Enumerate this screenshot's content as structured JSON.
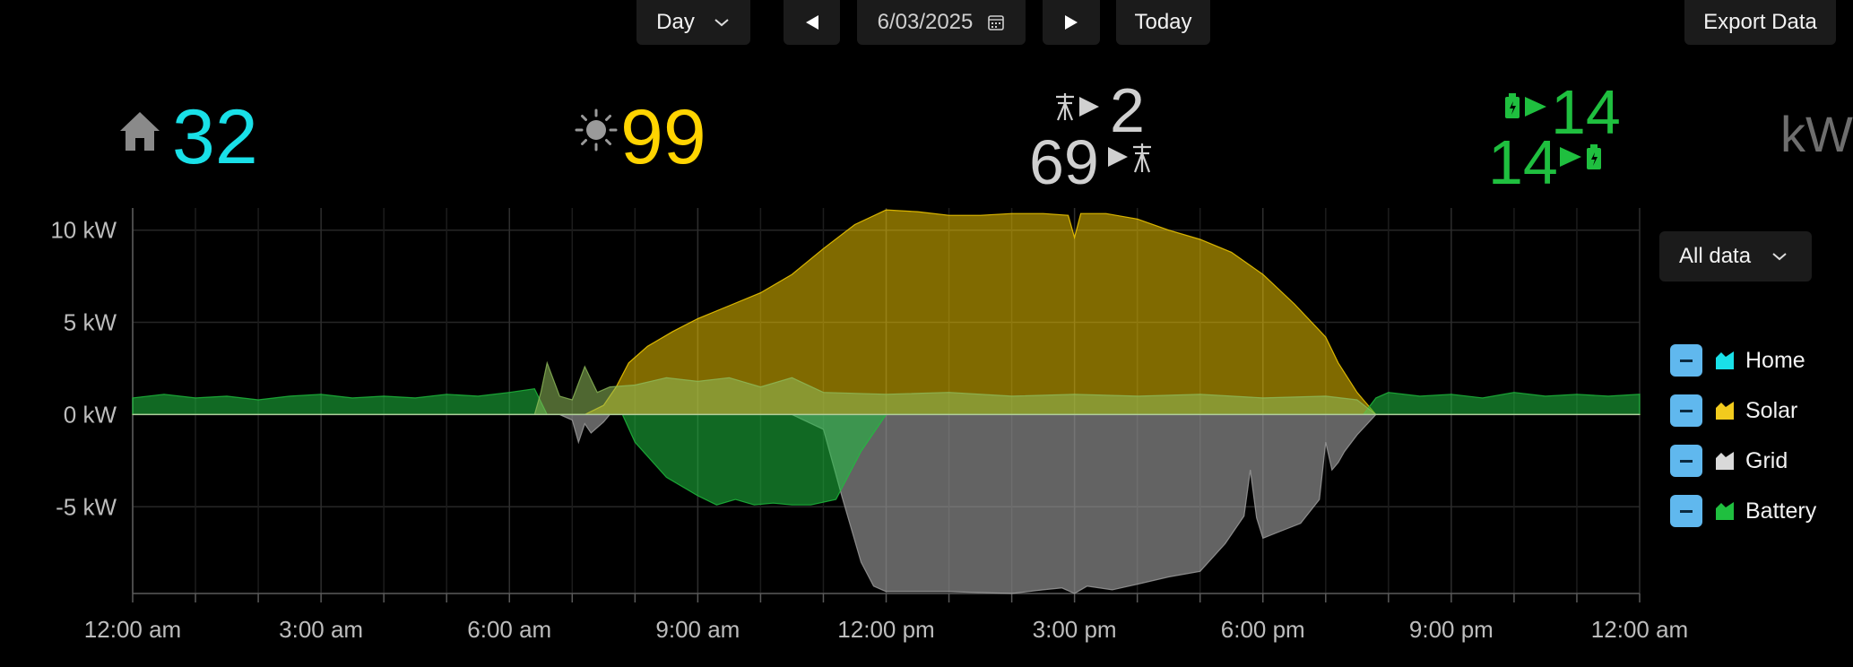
{
  "toolbar": {
    "period": "Day",
    "date": "6/03/2025",
    "today_label": "Today",
    "export_label": "Export Data"
  },
  "summary": {
    "home": "32",
    "solar": "99",
    "grid_import": "2",
    "grid_export": "69",
    "battery_charge": "14",
    "battery_discharge": "14",
    "unit_partial": "kW"
  },
  "filter": {
    "label": "All data"
  },
  "legend": [
    {
      "label": "Home",
      "color": "#19e0e8"
    },
    {
      "label": "Solar",
      "color": "#f2cb1d"
    },
    {
      "label": "Grid",
      "color": "#d9d9d9"
    },
    {
      "label": "Battery",
      "color": "#1fbf3f"
    }
  ],
  "chart_data": {
    "type": "area",
    "y_unit": "kW",
    "ylim": [
      -9.7,
      11.2
    ],
    "y_ticks": [
      10,
      5,
      0,
      -5
    ],
    "y_tick_labels": [
      "10 kW",
      "5 kW",
      "0 kW",
      "-5 kW"
    ],
    "x_ticks": [
      0,
      3,
      6,
      9,
      12,
      15,
      18,
      21,
      24
    ],
    "x_tick_labels": [
      "12:00 am",
      "3:00 am",
      "6:00 am",
      "9:00 am",
      "12:00 pm",
      "3:00 pm",
      "6:00 pm",
      "9:00 pm",
      "12:00 am"
    ],
    "grid": true,
    "series": [
      {
        "name": "Solar",
        "color": "#ffd400",
        "x": [
          0,
          7.2,
          7.5,
          7.7,
          7.9,
          8.2,
          8.6,
          9.0,
          9.5,
          10.0,
          10.5,
          11.0,
          11.5,
          12.0,
          12.5,
          13.0,
          13.5,
          14.0,
          14.5,
          14.9,
          15.0,
          15.1,
          15.5,
          16.0,
          16.5,
          17.0,
          17.5,
          18.0,
          18.5,
          19.0,
          19.2,
          19.5,
          19.8,
          24
        ],
        "y": [
          0,
          0,
          0.5,
          1.5,
          2.8,
          3.7,
          4.5,
          5.2,
          5.9,
          6.6,
          7.6,
          9.0,
          10.3,
          11.1,
          11.0,
          10.8,
          10.8,
          10.9,
          10.9,
          10.8,
          9.6,
          10.9,
          10.9,
          10.6,
          10.0,
          9.5,
          8.8,
          7.6,
          6.0,
          4.2,
          2.8,
          1.2,
          0,
          0
        ]
      },
      {
        "name": "Grid",
        "color": "#a0a0a0",
        "x": [
          0,
          6.8,
          7.0,
          7.1,
          7.2,
          7.3,
          7.5,
          7.6,
          7.8,
          10.5,
          11.0,
          11.3,
          11.6,
          11.8,
          12.0,
          13.0,
          14.0,
          14.5,
          14.8,
          15.0,
          15.2,
          15.6,
          16.0,
          16.5,
          17.0,
          17.4,
          17.7,
          17.8,
          17.9,
          18.0,
          18.3,
          18.6,
          18.9,
          19.0,
          19.1,
          19.2,
          19.3,
          19.5,
          19.8,
          24
        ],
        "y": [
          0,
          0,
          -0.3,
          -1.5,
          -0.5,
          -1.0,
          -0.4,
          0,
          0,
          0,
          -0.8,
          -4.5,
          -8.0,
          -9.3,
          -9.6,
          -9.6,
          -9.7,
          -9.5,
          -9.4,
          -9.7,
          -9.3,
          -9.5,
          -9.2,
          -8.8,
          -8.5,
          -7.0,
          -5.5,
          -3.0,
          -5.6,
          -6.7,
          -6.3,
          -5.9,
          -4.6,
          -1.5,
          -3.0,
          -2.6,
          -2.0,
          -1.1,
          0,
          0
        ]
      },
      {
        "name": "Battery",
        "color": "#1fbf3f",
        "x": [
          0,
          0.5,
          1.0,
          1.5,
          2.0,
          2.5,
          3.0,
          3.5,
          4.0,
          4.5,
          5.0,
          5.5,
          6.0,
          6.4,
          6.6,
          7.0,
          7.3,
          7.6,
          7.8,
          8.0,
          8.5,
          9.0,
          9.3,
          9.6,
          9.9,
          10.2,
          10.5,
          10.8,
          11.2,
          11.6,
          12.0,
          19.6,
          19.8,
          20.0,
          20.5,
          21.0,
          21.5,
          22.0,
          22.5,
          23.0,
          23.5,
          24
        ],
        "y": [
          0.9,
          1.1,
          0.9,
          1.0,
          0.8,
          1.0,
          1.1,
          0.9,
          1.0,
          0.9,
          1.1,
          1.0,
          1.2,
          1.4,
          0,
          0,
          0,
          0,
          0,
          -1.5,
          -3.4,
          -4.4,
          -4.9,
          -4.6,
          -4.9,
          -4.8,
          -4.9,
          -4.9,
          -4.6,
          -2.0,
          0,
          0,
          0.9,
          1.2,
          1.0,
          1.1,
          0.9,
          1.2,
          1.0,
          1.1,
          1.0,
          1.1
        ]
      },
      {
        "name": "Home",
        "color": "#8fbc5a",
        "x": [
          0,
          6.4,
          6.5,
          6.6,
          6.8,
          7.0,
          7.2,
          7.4,
          7.6,
          8.0,
          8.5,
          9.0,
          9.5,
          10.0,
          10.5,
          11.0,
          12.0,
          13.0,
          14.0,
          15.0,
          16.0,
          17.0,
          18.0,
          19.0,
          19.5,
          19.8,
          24
        ],
        "y": [
          0,
          0,
          1.2,
          2.8,
          1.0,
          0.8,
          2.6,
          1.2,
          1.5,
          1.6,
          2.0,
          1.8,
          2.0,
          1.5,
          2.0,
          1.2,
          1.1,
          1.2,
          1.0,
          1.1,
          1.0,
          1.1,
          0.9,
          1.0,
          0.8,
          0,
          0
        ]
      }
    ]
  }
}
